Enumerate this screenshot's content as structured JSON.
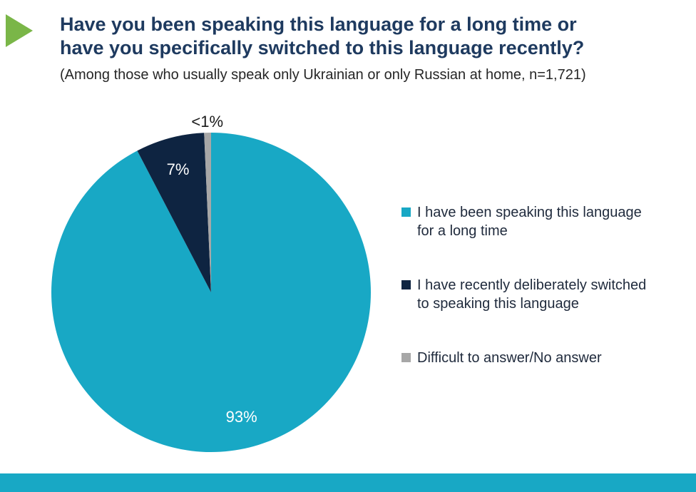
{
  "header": {
    "title_lines": [
      "Have you been speaking this language for a long time or",
      "have you specifically switched to this language recently?"
    ],
    "subtitle": "(Among those who usually speak only Ukrainian or only Russian at home, n=1,721)"
  },
  "chart_data": {
    "type": "pie",
    "title": "Have you been speaking this language for a long time or have you specifically switched to this language recently?",
    "subtitle": "(Among those who usually speak only Ukrainian or only Russian at home, n=1,721)",
    "start_angle": 0,
    "direction": "clockwise",
    "legend_position": "right",
    "series": [
      {
        "label": "I have been speaking this language for a long time",
        "value": 93,
        "display": "93%",
        "color": "#18a8c5",
        "label_color": "#ffffff",
        "label_pos": "inside"
      },
      {
        "label": "I have recently deliberately switched to speaking this language",
        "value": 7,
        "display": "7%",
        "color": "#0e2441",
        "label_color": "#ffffff",
        "label_pos": "inside"
      },
      {
        "label": "Difficult to answer/No answer",
        "value": 0.7,
        "display": "<1%",
        "color": "#a7a7a7",
        "label_color": "#1a1a1a",
        "label_pos": "outside"
      }
    ]
  },
  "legend": {
    "items": [
      {
        "text": "I have been speaking this language\nfor a long time"
      },
      {
        "text": "I have recently deliberately switched\nto speaking this language"
      },
      {
        "text": "Difficult to answer/No answer"
      }
    ]
  },
  "colors": {
    "accent_teal": "#18a8c5",
    "accent_navy": "#0e2441",
    "accent_gray": "#a7a7a7",
    "title_navy": "#1e3a5f",
    "bullet_green": "#7ab648"
  }
}
